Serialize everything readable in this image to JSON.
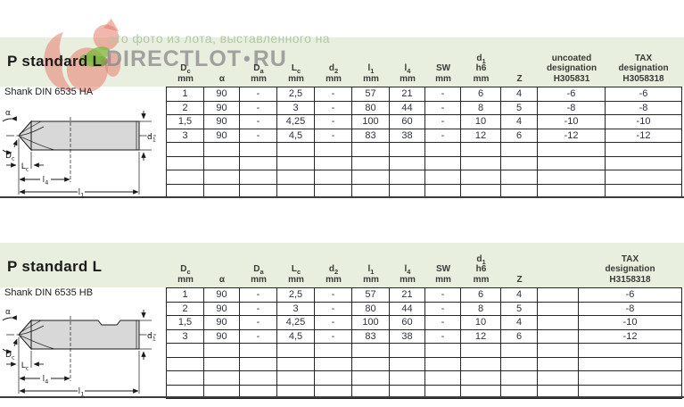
{
  "watermark": {
    "line1": "это фото из лота, выставленного на",
    "logo": "DIRECTLOT",
    "logo_dot": "•",
    "logo_tld": "RU"
  },
  "colors": {
    "band": "#e9efdf",
    "grid_line": "#262626",
    "cell_text": "#2f3340",
    "header_text": "#3a3a38",
    "watermark_text": "#b5c7a3",
    "logo_gray": "#8e8e8e",
    "squirrel_red": "#e57b6e",
    "leaf_green": "#7cb93e",
    "drawing_fill": "#d8d8d8"
  },
  "tables": [
    {
      "title": "P standard L",
      "shank_label": "Shank DIN 6535 HA",
      "columns": [
        {
          "lines": [
            "D_c",
            "mm"
          ]
        },
        {
          "lines": [
            "α"
          ]
        },
        {
          "lines": [
            "D_a",
            "mm"
          ]
        },
        {
          "lines": [
            "L_c",
            "mm"
          ]
        },
        {
          "lines": [
            "d_2",
            "mm"
          ]
        },
        {
          "lines": [
            "l_1",
            "mm"
          ]
        },
        {
          "lines": [
            "l_4",
            "mm"
          ]
        },
        {
          "lines": [
            "SW",
            "mm"
          ]
        },
        {
          "lines": [
            "d_1",
            "h6",
            "mm"
          ]
        },
        {
          "lines": [
            "Z"
          ]
        },
        {
          "lines": [
            "uncoated",
            "designation",
            "H305831"
          ]
        },
        {
          "lines": [
            "TAX",
            "designation",
            "H3058318"
          ]
        }
      ],
      "rows": [
        [
          "1",
          "90",
          "-",
          "2,5",
          "-",
          "57",
          "21",
          "-",
          "6",
          "4",
          "-6",
          "-6"
        ],
        [
          "2",
          "90",
          "-",
          "3",
          "-",
          "80",
          "44",
          "-",
          "8",
          "5",
          "-8",
          "-8"
        ],
        [
          "1,5",
          "90",
          "-",
          "4,25",
          "-",
          "100",
          "60",
          "-",
          "10",
          "4",
          "-10",
          "-10"
        ],
        [
          "3",
          "90",
          "-",
          "4,5",
          "-",
          "83",
          "38",
          "-",
          "12",
          "6",
          "-12",
          "-12"
        ]
      ],
      "empty_rows": 4,
      "drawing": {
        "alpha": "α",
        "dc": "D_c",
        "d1": "d_1",
        "lc": "L_c",
        "l4": "l_4",
        "l1": "l_1"
      }
    },
    {
      "title": "P standard L",
      "shank_label": "Shank DIN 6535 HB",
      "columns": [
        {
          "lines": [
            "D_c",
            "mm"
          ]
        },
        {
          "lines": [
            "α"
          ]
        },
        {
          "lines": [
            "D_a",
            "mm"
          ]
        },
        {
          "lines": [
            "L_c",
            "mm"
          ]
        },
        {
          "lines": [
            "d_2",
            "mm"
          ]
        },
        {
          "lines": [
            "l_1",
            "mm"
          ]
        },
        {
          "lines": [
            "l_4",
            "mm"
          ]
        },
        {
          "lines": [
            "SW",
            "mm"
          ]
        },
        {
          "lines": [
            "d_1",
            "h6",
            "mm"
          ]
        },
        {
          "lines": [
            "Z"
          ]
        },
        {
          "lines": []
        },
        {
          "lines": [
            "TAX",
            "designation",
            "H3158318"
          ]
        }
      ],
      "rows": [
        [
          "1",
          "90",
          "-",
          "2,5",
          "-",
          "57",
          "21",
          "-",
          "6",
          "4",
          "",
          "-6"
        ],
        [
          "2",
          "90",
          "-",
          "3",
          "-",
          "80",
          "44",
          "-",
          "8",
          "5",
          "",
          "-8"
        ],
        [
          "1,5",
          "90",
          "-",
          "4,25",
          "-",
          "100",
          "60",
          "-",
          "10",
          "4",
          "",
          "-10"
        ],
        [
          "3",
          "90",
          "-",
          "4,5",
          "-",
          "83",
          "38",
          "-",
          "12",
          "6",
          "",
          "-12"
        ]
      ],
      "empty_rows": 4,
      "drawing": {
        "alpha": "α",
        "dc": "D_c",
        "d1": "d_1",
        "lc": "L_c",
        "l4": "l_4",
        "l1": "l_1"
      }
    }
  ]
}
